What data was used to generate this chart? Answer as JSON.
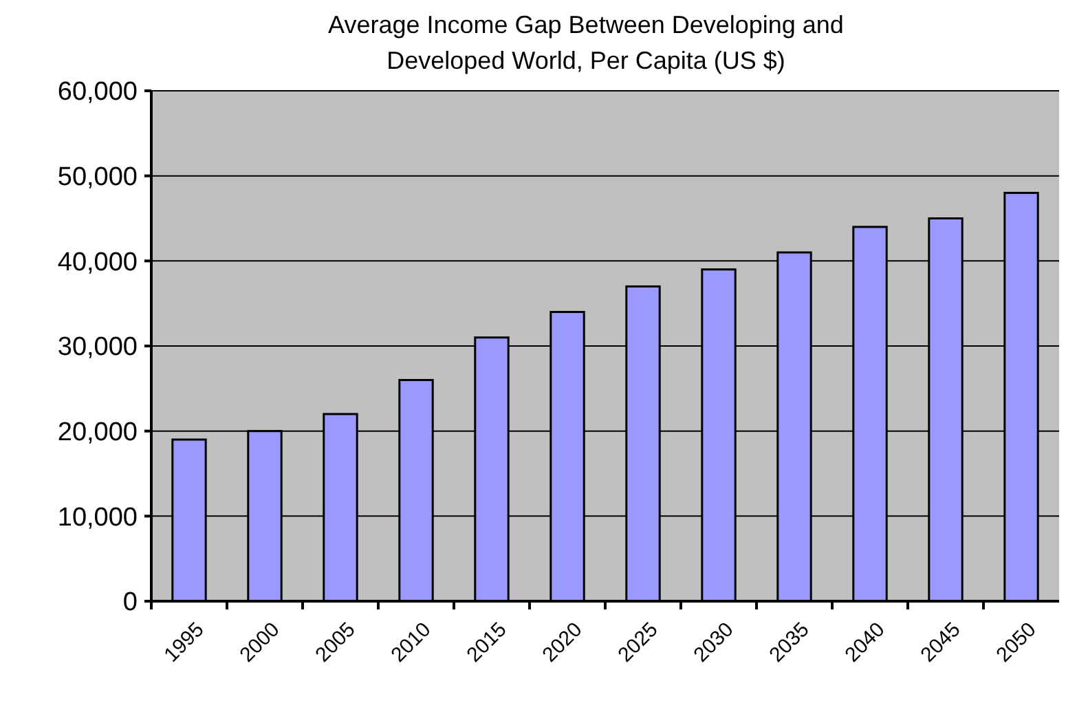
{
  "chart_data": {
    "type": "bar",
    "title": "Average Income Gap Between Developing and Developed World, Per Capita (US $)",
    "categories": [
      "1995",
      "2000",
      "2005",
      "2010",
      "2015",
      "2020",
      "2025",
      "2030",
      "2035",
      "2040",
      "2045",
      "2050"
    ],
    "values": [
      19000,
      20000,
      22000,
      26000,
      31000,
      34000,
      37000,
      39000,
      41000,
      44000,
      45000,
      48000
    ],
    "color": "#9999ff",
    "ylim": [
      0,
      60000
    ],
    "yticks": [
      {
        "value": 0,
        "label": "0"
      },
      {
        "value": 10000,
        "label": "10,000"
      },
      {
        "value": 20000,
        "label": "20,000"
      },
      {
        "value": 30000,
        "label": "30,000"
      },
      {
        "value": 40000,
        "label": "40,000"
      },
      {
        "value": 50000,
        "label": "50,000"
      },
      {
        "value": 60000,
        "label": "60,000"
      }
    ],
    "grid": "y"
  }
}
